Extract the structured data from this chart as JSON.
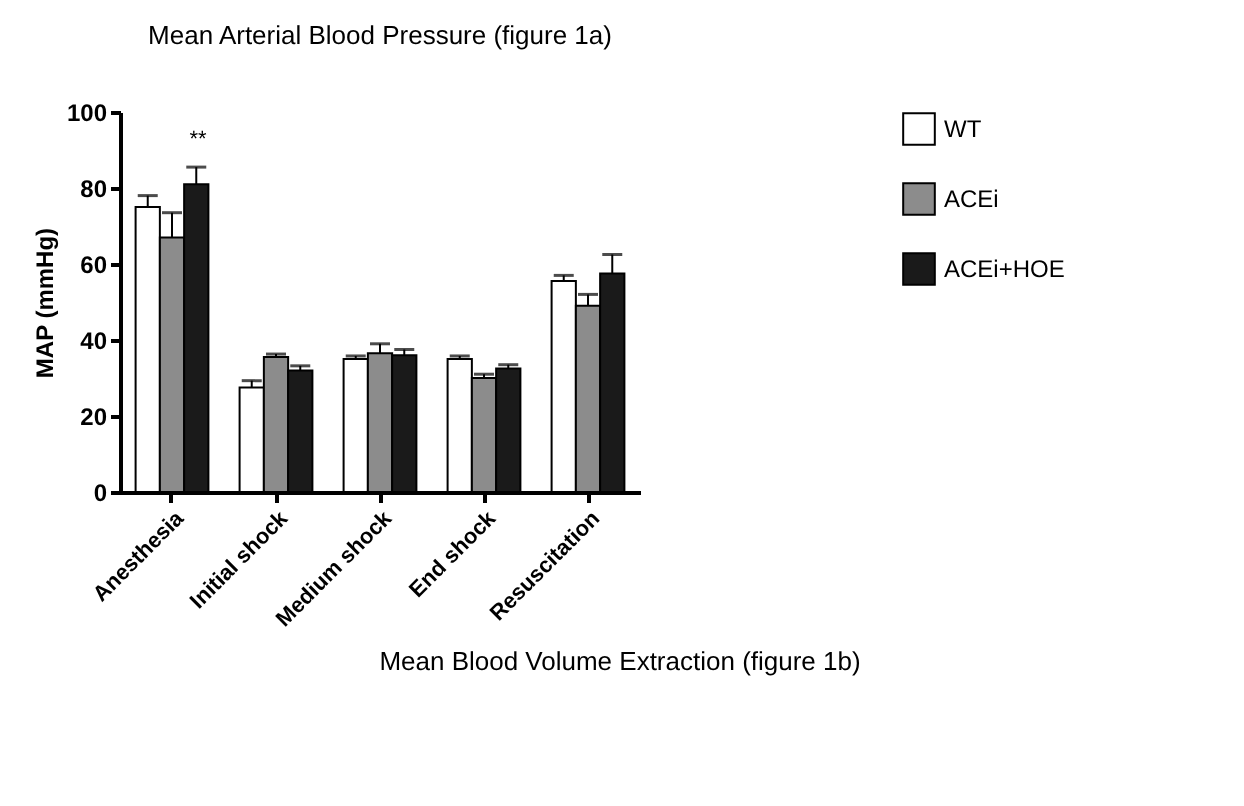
{
  "chart_data": {
    "type": "bar",
    "title": "Mean Arterial Blood Pressure (figure 1a)",
    "ylabel": "MAP (mmHg)",
    "categories": [
      "Anesthesia",
      "Initial shock",
      "Medium shock",
      "End shock",
      "Resuscitation"
    ],
    "series": [
      {
        "name": "WT",
        "color": "#ffffff",
        "values": [
          75,
          27.5,
          35,
          35,
          55.5
        ],
        "errors": [
          [
            75,
            78
          ],
          [
            27.5,
            29.3
          ],
          [
            35,
            35.8
          ],
          [
            35,
            35.8
          ],
          [
            55.5,
            57
          ]
        ]
      },
      {
        "name": "ACEi",
        "color": "#8c8c8c",
        "values": [
          67,
          35.5,
          36.5,
          30,
          49
        ],
        "errors": [
          [
            67,
            73.5
          ],
          [
            35.5,
            36.3
          ],
          [
            36.5,
            39
          ],
          [
            30,
            31
          ],
          [
            49,
            52
          ]
        ]
      },
      {
        "name": "ACEi+HOE",
        "color": "#1a1a1a",
        "values": [
          81,
          32,
          36,
          32.5,
          57.5
        ],
        "errors": [
          [
            81,
            85.5
          ],
          [
            32,
            33.2
          ],
          [
            36,
            37.5
          ],
          [
            32.5,
            33.5
          ],
          [
            57.5,
            62.5
          ]
        ]
      }
    ],
    "ylim": [
      0,
      100
    ],
    "yticks": [
      0,
      20,
      40,
      60,
      80,
      100
    ],
    "grid": false,
    "legend": "right",
    "annotations": [
      "**",
      "Mean Blood Volume Extraction (figure 1b)"
    ]
  }
}
